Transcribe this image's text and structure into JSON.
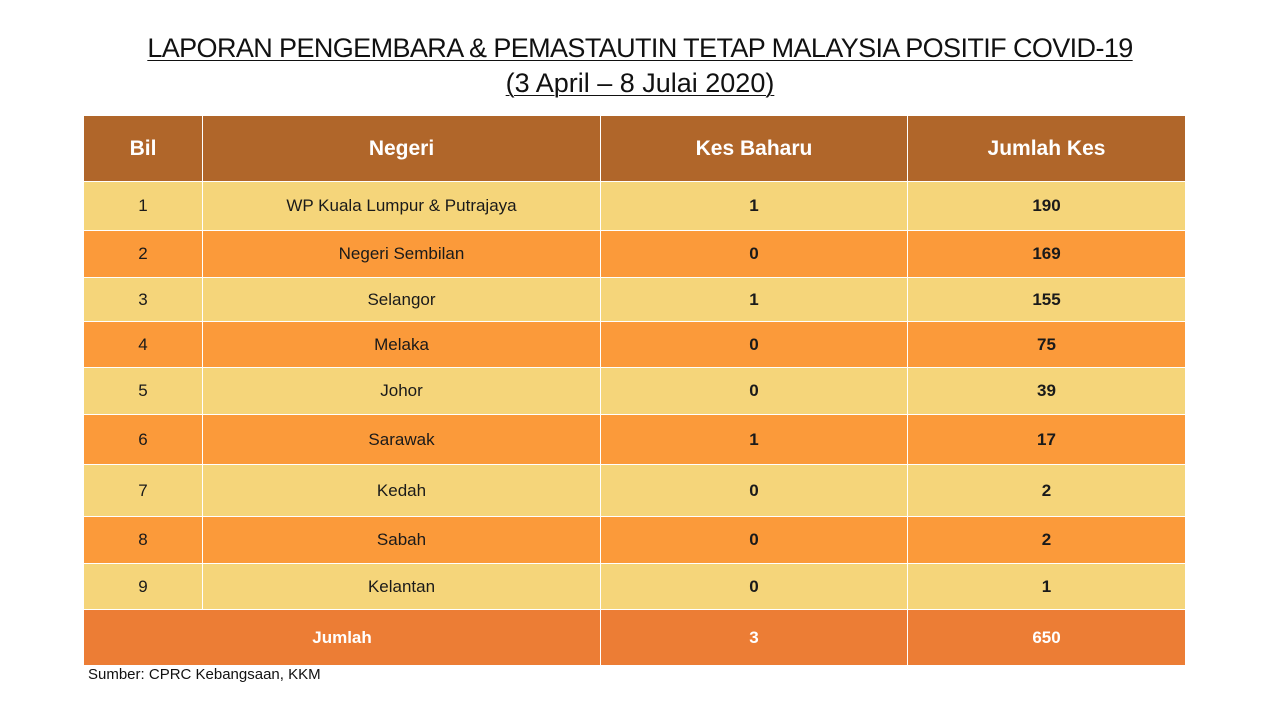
{
  "title": {
    "line1": "LAPORAN PENGEMBARA & PEMASTAUTIN TETAP MALAYSIA POSITIF COVID-19",
    "line2": "(3 April –  8 Julai 2020)"
  },
  "table": {
    "headers": [
      "Bil",
      "Negeri",
      "Kes Baharu",
      "Jumlah Kes"
    ],
    "rows": [
      {
        "bil": "1",
        "negeri": "WP Kuala Lumpur & Putrajaya",
        "baharu": "1",
        "jumlah": "190"
      },
      {
        "bil": "2",
        "negeri": "Negeri Sembilan",
        "baharu": "0",
        "jumlah": "169"
      },
      {
        "bil": "3",
        "negeri": "Selangor",
        "baharu": "1",
        "jumlah": "155"
      },
      {
        "bil": "4",
        "negeri": "Melaka",
        "baharu": "0",
        "jumlah": "75"
      },
      {
        "bil": "5",
        "negeri": "Johor",
        "baharu": "0",
        "jumlah": "39"
      },
      {
        "bil": "6",
        "negeri": "Sarawak",
        "baharu": "1",
        "jumlah": "17"
      },
      {
        "bil": "7",
        "negeri": "Kedah",
        "baharu": "0",
        "jumlah": "2"
      },
      {
        "bil": "8",
        "negeri": "Sabah",
        "baharu": "0",
        "jumlah": "2"
      },
      {
        "bil": "9",
        "negeri": "Kelantan",
        "baharu": "0",
        "jumlah": "1"
      }
    ],
    "total": {
      "label": "Jumlah",
      "baharu": "3",
      "jumlah": "650"
    }
  },
  "source": "Sumber: CPRC Kebangsaan, KKM",
  "colors": {
    "header": "#B0662A",
    "row_light": "#F5D57A",
    "row_dark": "#FB9A3A",
    "total": "#EC7D35"
  }
}
